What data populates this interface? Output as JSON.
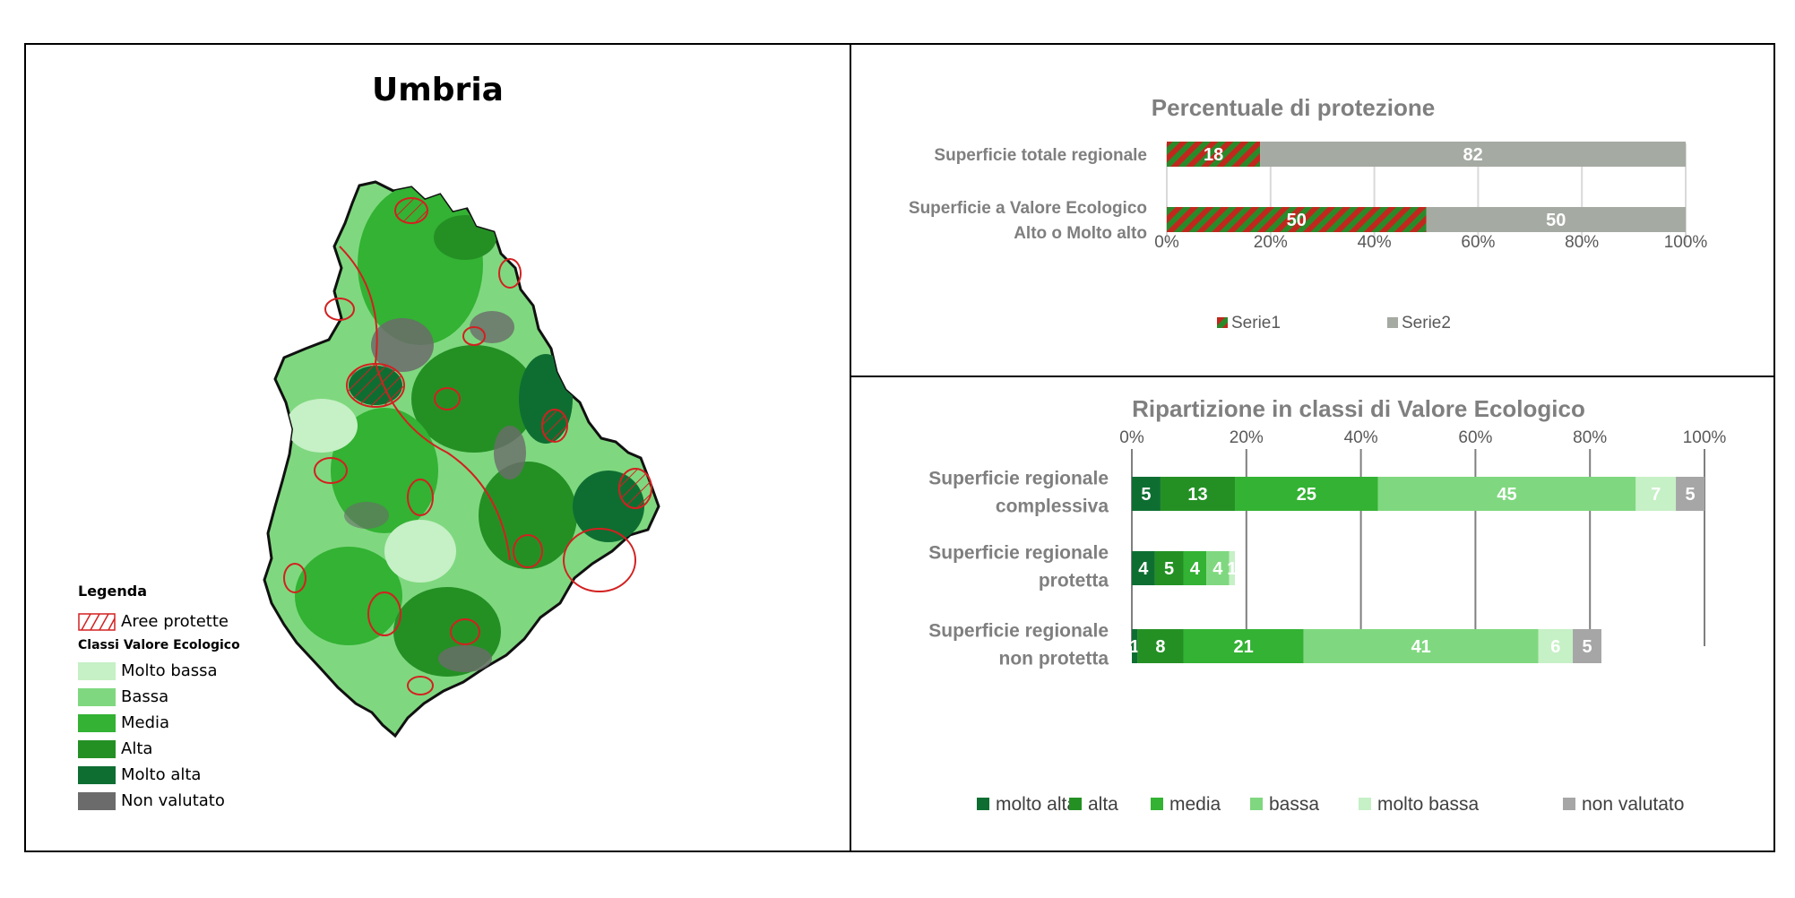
{
  "map": {
    "title": "Umbria",
    "legend": {
      "title": "Legenda",
      "protected_label": "Aree protette",
      "classes_title": "Classi Valore Ecologico",
      "items": [
        {
          "label": "Molto bassa",
          "color": "#c6f0c6"
        },
        {
          "label": "Bassa",
          "color": "#7fd87f"
        },
        {
          "label": "Media",
          "color": "#33b233"
        },
        {
          "label": "Alta",
          "color": "#249024"
        },
        {
          "label": "Molto alta",
          "color": "#0e6e32"
        },
        {
          "label": "Non valutato",
          "color": "#6b6b6b"
        }
      ]
    }
  },
  "chart_data": [
    {
      "type": "bar",
      "orientation": "horizontal",
      "stacked": true,
      "title": "Percentuale di protezione",
      "categories": [
        "Superficie totale regionale",
        "Superficie a Valore Ecologico Alto o Molto alto"
      ],
      "series": [
        {
          "name": "Serie1",
          "values": [
            18,
            50
          ],
          "color": "#c0281e",
          "pattern": "green-red-hatch"
        },
        {
          "name": "Serie2",
          "values": [
            82,
            50
          ],
          "color": "#a5aaa3"
        }
      ],
      "xlim": [
        0,
        100
      ],
      "xticks": [
        "0%",
        "20%",
        "40%",
        "60%",
        "80%",
        "100%"
      ],
      "grid": true,
      "legend": "bottom-left"
    },
    {
      "type": "bar",
      "orientation": "horizontal",
      "stacked": true,
      "title": "Ripartizione in classi di Valore Ecologico",
      "categories": [
        "Superficie regionale complessiva",
        "Superficie regionale protetta",
        "Superficie regionale non protetta"
      ],
      "series": [
        {
          "name": "molto alta",
          "values": [
            5,
            4,
            1
          ],
          "color": "#0e6e32"
        },
        {
          "name": "alta",
          "values": [
            13,
            5,
            8
          ],
          "color": "#249024"
        },
        {
          "name": "media",
          "values": [
            25,
            4,
            21
          ],
          "color": "#33b233"
        },
        {
          "name": "bassa",
          "values": [
            45,
            4,
            41
          ],
          "color": "#7fd87f"
        },
        {
          "name": "molto bassa",
          "values": [
            7,
            1,
            6
          ],
          "color": "#c6f0c6"
        },
        {
          "name": "non valutato",
          "values": [
            5,
            0,
            5
          ],
          "color": "#a6a6a6"
        }
      ],
      "xlim": [
        0,
        100
      ],
      "xticks": [
        "0%",
        "20%",
        "40%",
        "60%",
        "80%",
        "100%"
      ],
      "grid": true,
      "legend": "bottom"
    }
  ]
}
